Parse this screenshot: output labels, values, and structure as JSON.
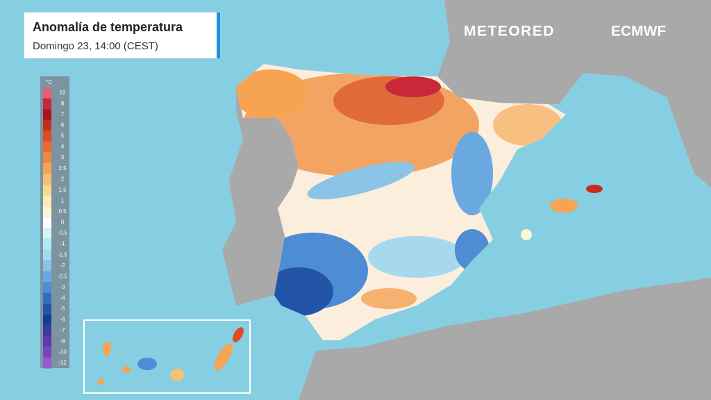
{
  "header": {
    "title": "Anomalía de temperatura",
    "subtitle": "Domingo 23, 14:00 (CEST)"
  },
  "logos": {
    "brand": "METEORED",
    "partner": "ECMWF"
  },
  "legend": {
    "unit": "°C",
    "labels": [
      10,
      8,
      7,
      6,
      5,
      4,
      3,
      2.5,
      2,
      1.5,
      1,
      0.5,
      0,
      -0.5,
      -1,
      -1.5,
      -2,
      -2.5,
      -3,
      -4,
      -5,
      -6,
      -7,
      -8,
      -10,
      -12
    ],
    "colors": [
      "#e0607a",
      "#c8283a",
      "#a8141e",
      "#c82a1e",
      "#e04a24",
      "#ec6a2c",
      "#f08a3c",
      "#f6a452",
      "#f8c070",
      "#fbd890",
      "#fdeab4",
      "#fff6d6",
      "#ffffff",
      "#d8f4f4",
      "#b2eaee",
      "#a6d8ee",
      "#86c2e8",
      "#6aa8e0",
      "#4e8cd4",
      "#346ec4",
      "#2254a8",
      "#163e8c",
      "#3a3a9a",
      "#5a3aae",
      "#7a44c0",
      "#9a58cc"
    ]
  }
}
